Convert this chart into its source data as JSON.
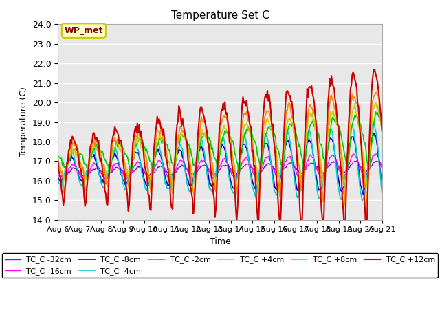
{
  "title": "Temperature Set C",
  "xlabel": "Time",
  "ylabel": "Temperature (C)",
  "ylim": [
    14.0,
    24.0
  ],
  "yticks": [
    14.0,
    15.0,
    16.0,
    17.0,
    18.0,
    19.0,
    20.0,
    21.0,
    22.0,
    23.0,
    24.0
  ],
  "x_labels": [
    "Aug 6",
    "Aug 7",
    "Aug 8",
    "Aug 9",
    "Aug 10",
    "Aug 11",
    "Aug 12",
    "Aug 13",
    "Aug 14",
    "Aug 15",
    "Aug 16",
    "Aug 17",
    "Aug 18",
    "Aug 19",
    "Aug 20",
    "Aug 21"
  ],
  "series": [
    {
      "label": "TC_C -32cm",
      "color": "#9900cc",
      "lw": 1.0,
      "depth_idx": 0
    },
    {
      "label": "TC_C -16cm",
      "color": "#ff00ff",
      "lw": 1.0,
      "depth_idx": 1
    },
    {
      "label": "TC_C -8cm",
      "color": "#0000cc",
      "lw": 1.2,
      "depth_idx": 2
    },
    {
      "label": "TC_C -4cm",
      "color": "#00cccc",
      "lw": 1.2,
      "depth_idx": 3
    },
    {
      "label": "TC_C -2cm",
      "color": "#00cc00",
      "lw": 1.2,
      "depth_idx": 4
    },
    {
      "label": "TC_C +4cm",
      "color": "#cccc00",
      "lw": 1.2,
      "depth_idx": 5
    },
    {
      "label": "TC_C +8cm",
      "color": "#ff8800",
      "lw": 1.2,
      "depth_idx": 6
    },
    {
      "label": "TC_C +12cm",
      "color": "#cc0000",
      "lw": 1.5,
      "depth_idx": 7
    }
  ],
  "annotation_text": "WP_met",
  "bg_color": "#e8e8e8",
  "grid_color": "#ffffff",
  "legend_ncol": 6
}
